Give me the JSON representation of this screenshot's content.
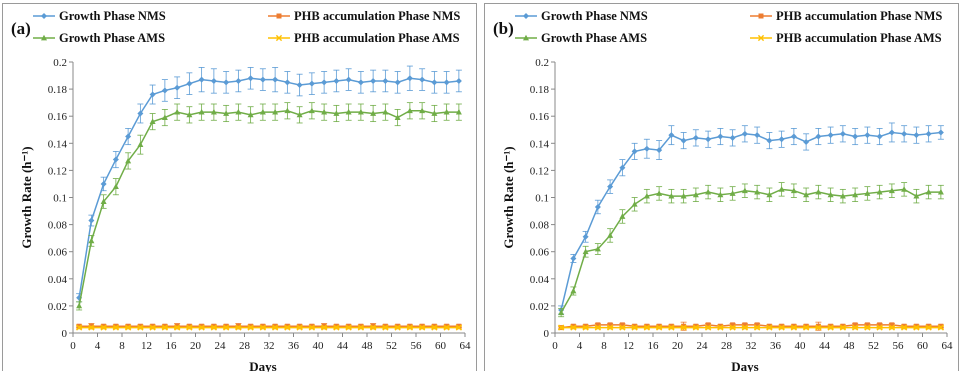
{
  "chart_data": [
    {
      "type": "line",
      "panel_label": "(a)",
      "xlabel": "Days",
      "ylabel": "Growth Rate (h⁻¹)",
      "xlim": [
        0,
        64
      ],
      "ylim": [
        0,
        0.2
      ],
      "xticks": [
        0,
        4,
        8,
        12,
        16,
        20,
        24,
        28,
        32,
        36,
        40,
        44,
        48,
        52,
        56,
        60,
        64
      ],
      "yticks": [
        0,
        0.02,
        0.04,
        0.06,
        0.08,
        0.1,
        0.12,
        0.14,
        0.16,
        0.18,
        0.2
      ],
      "legend_position": "top",
      "series": [
        {
          "name": "Growth Phase NMS",
          "color": "#5b9bd5",
          "marker": "diamond",
          "x": [
            1,
            3,
            5,
            7,
            9,
            11,
            13,
            15,
            17,
            19,
            21,
            23,
            25,
            27,
            29,
            31,
            33,
            35,
            37,
            39,
            41,
            43,
            45,
            47,
            49,
            51,
            53,
            55,
            57,
            59,
            61,
            63
          ],
          "values": [
            0.026,
            0.083,
            0.11,
            0.128,
            0.145,
            0.162,
            0.176,
            0.179,
            0.181,
            0.184,
            0.187,
            0.186,
            0.185,
            0.186,
            0.188,
            0.187,
            0.187,
            0.185,
            0.183,
            0.184,
            0.185,
            0.186,
            0.187,
            0.185,
            0.186,
            0.186,
            0.185,
            0.188,
            0.187,
            0.185,
            0.185,
            0.186
          ],
          "errors": [
            0.003,
            0.004,
            0.005,
            0.006,
            0.006,
            0.007,
            0.007,
            0.008,
            0.008,
            0.008,
            0.009,
            0.009,
            0.008,
            0.008,
            0.008,
            0.008,
            0.009,
            0.008,
            0.008,
            0.008,
            0.008,
            0.008,
            0.008,
            0.008,
            0.008,
            0.008,
            0.008,
            0.009,
            0.008,
            0.008,
            0.008,
            0.008
          ]
        },
        {
          "name": "PHB accumulation Phase NMS",
          "color": "#ed7d31",
          "marker": "square",
          "x": [
            1,
            3,
            5,
            7,
            9,
            11,
            13,
            15,
            17,
            19,
            21,
            23,
            25,
            27,
            29,
            31,
            33,
            35,
            37,
            39,
            41,
            43,
            45,
            47,
            49,
            51,
            53,
            55,
            57,
            59,
            61,
            63
          ],
          "values": [
            0.005,
            0.005,
            0.005,
            0.005,
            0.005,
            0.005,
            0.005,
            0.005,
            0.005,
            0.005,
            0.005,
            0.005,
            0.005,
            0.005,
            0.005,
            0.005,
            0.005,
            0.005,
            0.005,
            0.005,
            0.005,
            0.005,
            0.005,
            0.005,
            0.005,
            0.005,
            0.005,
            0.005,
            0.005,
            0.005,
            0.005,
            0.005
          ],
          "errors": [
            0.001,
            0.002,
            0.001,
            0.001,
            0.001,
            0.001,
            0.001,
            0.001,
            0.002,
            0.001,
            0.001,
            0.001,
            0.001,
            0.002,
            0.001,
            0.001,
            0.001,
            0.001,
            0.001,
            0.001,
            0.002,
            0.001,
            0.001,
            0.001,
            0.002,
            0.001,
            0.001,
            0.001,
            0.001,
            0.001,
            0.001,
            0.001
          ]
        },
        {
          "name": "Growth Phase AMS",
          "color": "#70ad47",
          "marker": "triangle",
          "x": [
            1,
            3,
            5,
            7,
            9,
            11,
            13,
            15,
            17,
            19,
            21,
            23,
            25,
            27,
            29,
            31,
            33,
            35,
            37,
            39,
            41,
            43,
            45,
            47,
            49,
            51,
            53,
            55,
            57,
            59,
            61,
            63
          ],
          "values": [
            0.02,
            0.068,
            0.097,
            0.108,
            0.127,
            0.139,
            0.156,
            0.159,
            0.163,
            0.161,
            0.163,
            0.163,
            0.162,
            0.163,
            0.161,
            0.163,
            0.163,
            0.164,
            0.161,
            0.164,
            0.163,
            0.162,
            0.163,
            0.163,
            0.162,
            0.163,
            0.159,
            0.164,
            0.164,
            0.162,
            0.163,
            0.163
          ],
          "errors": [
            0.003,
            0.004,
            0.005,
            0.006,
            0.006,
            0.007,
            0.006,
            0.006,
            0.006,
            0.006,
            0.006,
            0.006,
            0.006,
            0.006,
            0.006,
            0.006,
            0.006,
            0.006,
            0.006,
            0.006,
            0.006,
            0.006,
            0.006,
            0.006,
            0.006,
            0.006,
            0.006,
            0.006,
            0.006,
            0.006,
            0.006,
            0.006
          ]
        },
        {
          "name": "PHB accumulation Phase AMS",
          "color": "#ffc000",
          "marker": "cross",
          "x": [
            1,
            3,
            5,
            7,
            9,
            11,
            13,
            15,
            17,
            19,
            21,
            23,
            25,
            27,
            29,
            31,
            33,
            35,
            37,
            39,
            41,
            43,
            45,
            47,
            49,
            51,
            53,
            55,
            57,
            59,
            61,
            63
          ],
          "values": [
            0.004,
            0.004,
            0.004,
            0.004,
            0.004,
            0.004,
            0.004,
            0.004,
            0.004,
            0.004,
            0.004,
            0.004,
            0.004,
            0.004,
            0.004,
            0.004,
            0.004,
            0.004,
            0.004,
            0.004,
            0.004,
            0.004,
            0.004,
            0.004,
            0.004,
            0.004,
            0.004,
            0.004,
            0.004,
            0.004,
            0.004,
            0.004
          ],
          "errors": [
            0.001,
            0.001,
            0.001,
            0.001,
            0.001,
            0.001,
            0.001,
            0.001,
            0.001,
            0.001,
            0.001,
            0.001,
            0.001,
            0.001,
            0.001,
            0.001,
            0.001,
            0.001,
            0.001,
            0.001,
            0.001,
            0.001,
            0.001,
            0.001,
            0.001,
            0.001,
            0.001,
            0.001,
            0.001,
            0.001,
            0.001,
            0.001
          ]
        }
      ]
    },
    {
      "type": "line",
      "panel_label": "(b)",
      "xlabel": "Days",
      "ylabel": "Growth Rate (h⁻¹)",
      "xlim": [
        0,
        64
      ],
      "ylim": [
        0,
        0.2
      ],
      "xticks": [
        0,
        4,
        8,
        12,
        16,
        20,
        24,
        28,
        32,
        36,
        40,
        44,
        48,
        52,
        56,
        60,
        64
      ],
      "yticks": [
        0,
        0.02,
        0.04,
        0.06,
        0.08,
        0.1,
        0.12,
        0.14,
        0.16,
        0.18,
        0.2
      ],
      "legend_position": "top",
      "series": [
        {
          "name": "Growth Phase NMS",
          "color": "#5b9bd5",
          "marker": "diamond",
          "x": [
            1,
            3,
            5,
            7,
            9,
            11,
            13,
            15,
            17,
            19,
            21,
            23,
            25,
            27,
            29,
            31,
            33,
            35,
            37,
            39,
            41,
            43,
            45,
            47,
            49,
            51,
            53,
            55,
            57,
            59,
            61,
            63
          ],
          "values": [
            0.017,
            0.055,
            0.071,
            0.093,
            0.108,
            0.122,
            0.134,
            0.136,
            0.135,
            0.146,
            0.142,
            0.144,
            0.143,
            0.145,
            0.144,
            0.147,
            0.146,
            0.142,
            0.143,
            0.145,
            0.141,
            0.145,
            0.146,
            0.147,
            0.145,
            0.146,
            0.145,
            0.148,
            0.147,
            0.146,
            0.147,
            0.148
          ],
          "errors": [
            0.003,
            0.003,
            0.004,
            0.005,
            0.005,
            0.006,
            0.006,
            0.007,
            0.007,
            0.007,
            0.006,
            0.006,
            0.006,
            0.006,
            0.006,
            0.006,
            0.006,
            0.006,
            0.006,
            0.006,
            0.006,
            0.006,
            0.006,
            0.006,
            0.006,
            0.006,
            0.006,
            0.007,
            0.006,
            0.006,
            0.006,
            0.005
          ]
        },
        {
          "name": "PHB accumulation Phase NMS",
          "color": "#ed7d31",
          "marker": "square",
          "x": [
            1,
            3,
            5,
            7,
            9,
            11,
            13,
            15,
            17,
            19,
            21,
            23,
            25,
            27,
            29,
            31,
            33,
            35,
            37,
            39,
            41,
            43,
            45,
            47,
            49,
            51,
            53,
            55,
            57,
            59,
            61,
            63
          ],
          "values": [
            0.004,
            0.005,
            0.005,
            0.006,
            0.006,
            0.006,
            0.005,
            0.005,
            0.005,
            0.005,
            0.005,
            0.005,
            0.006,
            0.005,
            0.006,
            0.006,
            0.006,
            0.005,
            0.005,
            0.005,
            0.005,
            0.005,
            0.005,
            0.005,
            0.006,
            0.006,
            0.006,
            0.006,
            0.005,
            0.005,
            0.005,
            0.005
          ],
          "errors": [
            0.001,
            0.001,
            0.001,
            0.001,
            0.001,
            0.001,
            0.001,
            0.001,
            0.001,
            0.001,
            0.003,
            0.001,
            0.001,
            0.001,
            0.001,
            0.001,
            0.001,
            0.001,
            0.001,
            0.001,
            0.001,
            0.003,
            0.001,
            0.001,
            0.001,
            0.001,
            0.001,
            0.001,
            0.001,
            0.001,
            0.001,
            0.001
          ]
        },
        {
          "name": "Growth Phase AMS",
          "color": "#70ad47",
          "marker": "triangle",
          "x": [
            1,
            3,
            5,
            7,
            9,
            11,
            13,
            15,
            17,
            19,
            21,
            23,
            25,
            27,
            29,
            31,
            33,
            35,
            37,
            39,
            41,
            43,
            45,
            47,
            49,
            51,
            53,
            55,
            57,
            59,
            61,
            63
          ],
          "values": [
            0.015,
            0.031,
            0.06,
            0.062,
            0.072,
            0.086,
            0.095,
            0.101,
            0.103,
            0.101,
            0.101,
            0.102,
            0.104,
            0.102,
            0.103,
            0.105,
            0.104,
            0.102,
            0.106,
            0.105,
            0.102,
            0.104,
            0.102,
            0.101,
            0.102,
            0.103,
            0.104,
            0.105,
            0.106,
            0.101,
            0.104,
            0.104
          ],
          "errors": [
            0.003,
            0.003,
            0.004,
            0.004,
            0.005,
            0.005,
            0.005,
            0.005,
            0.005,
            0.005,
            0.005,
            0.005,
            0.005,
            0.005,
            0.005,
            0.005,
            0.005,
            0.005,
            0.005,
            0.005,
            0.005,
            0.005,
            0.005,
            0.005,
            0.005,
            0.005,
            0.005,
            0.005,
            0.005,
            0.005,
            0.005,
            0.005
          ]
        },
        {
          "name": "PHB accumulation Phase AMS",
          "color": "#ffc000",
          "marker": "cross",
          "x": [
            1,
            3,
            5,
            7,
            9,
            11,
            13,
            15,
            17,
            19,
            21,
            23,
            25,
            27,
            29,
            31,
            33,
            35,
            37,
            39,
            41,
            43,
            45,
            47,
            49,
            51,
            53,
            55,
            57,
            59,
            61,
            63
          ],
          "values": [
            0.004,
            0.004,
            0.004,
            0.004,
            0.004,
            0.004,
            0.004,
            0.004,
            0.004,
            0.004,
            0.004,
            0.004,
            0.004,
            0.004,
            0.004,
            0.004,
            0.004,
            0.004,
            0.004,
            0.004,
            0.004,
            0.004,
            0.004,
            0.004,
            0.004,
            0.004,
            0.004,
            0.004,
            0.004,
            0.004,
            0.004,
            0.004
          ],
          "errors": [
            0.001,
            0.001,
            0.001,
            0.001,
            0.001,
            0.001,
            0.001,
            0.001,
            0.001,
            0.001,
            0.001,
            0.001,
            0.001,
            0.001,
            0.001,
            0.001,
            0.001,
            0.001,
            0.001,
            0.001,
            0.001,
            0.001,
            0.001,
            0.001,
            0.001,
            0.001,
            0.001,
            0.001,
            0.001,
            0.001,
            0.001,
            0.001
          ]
        }
      ]
    }
  ]
}
